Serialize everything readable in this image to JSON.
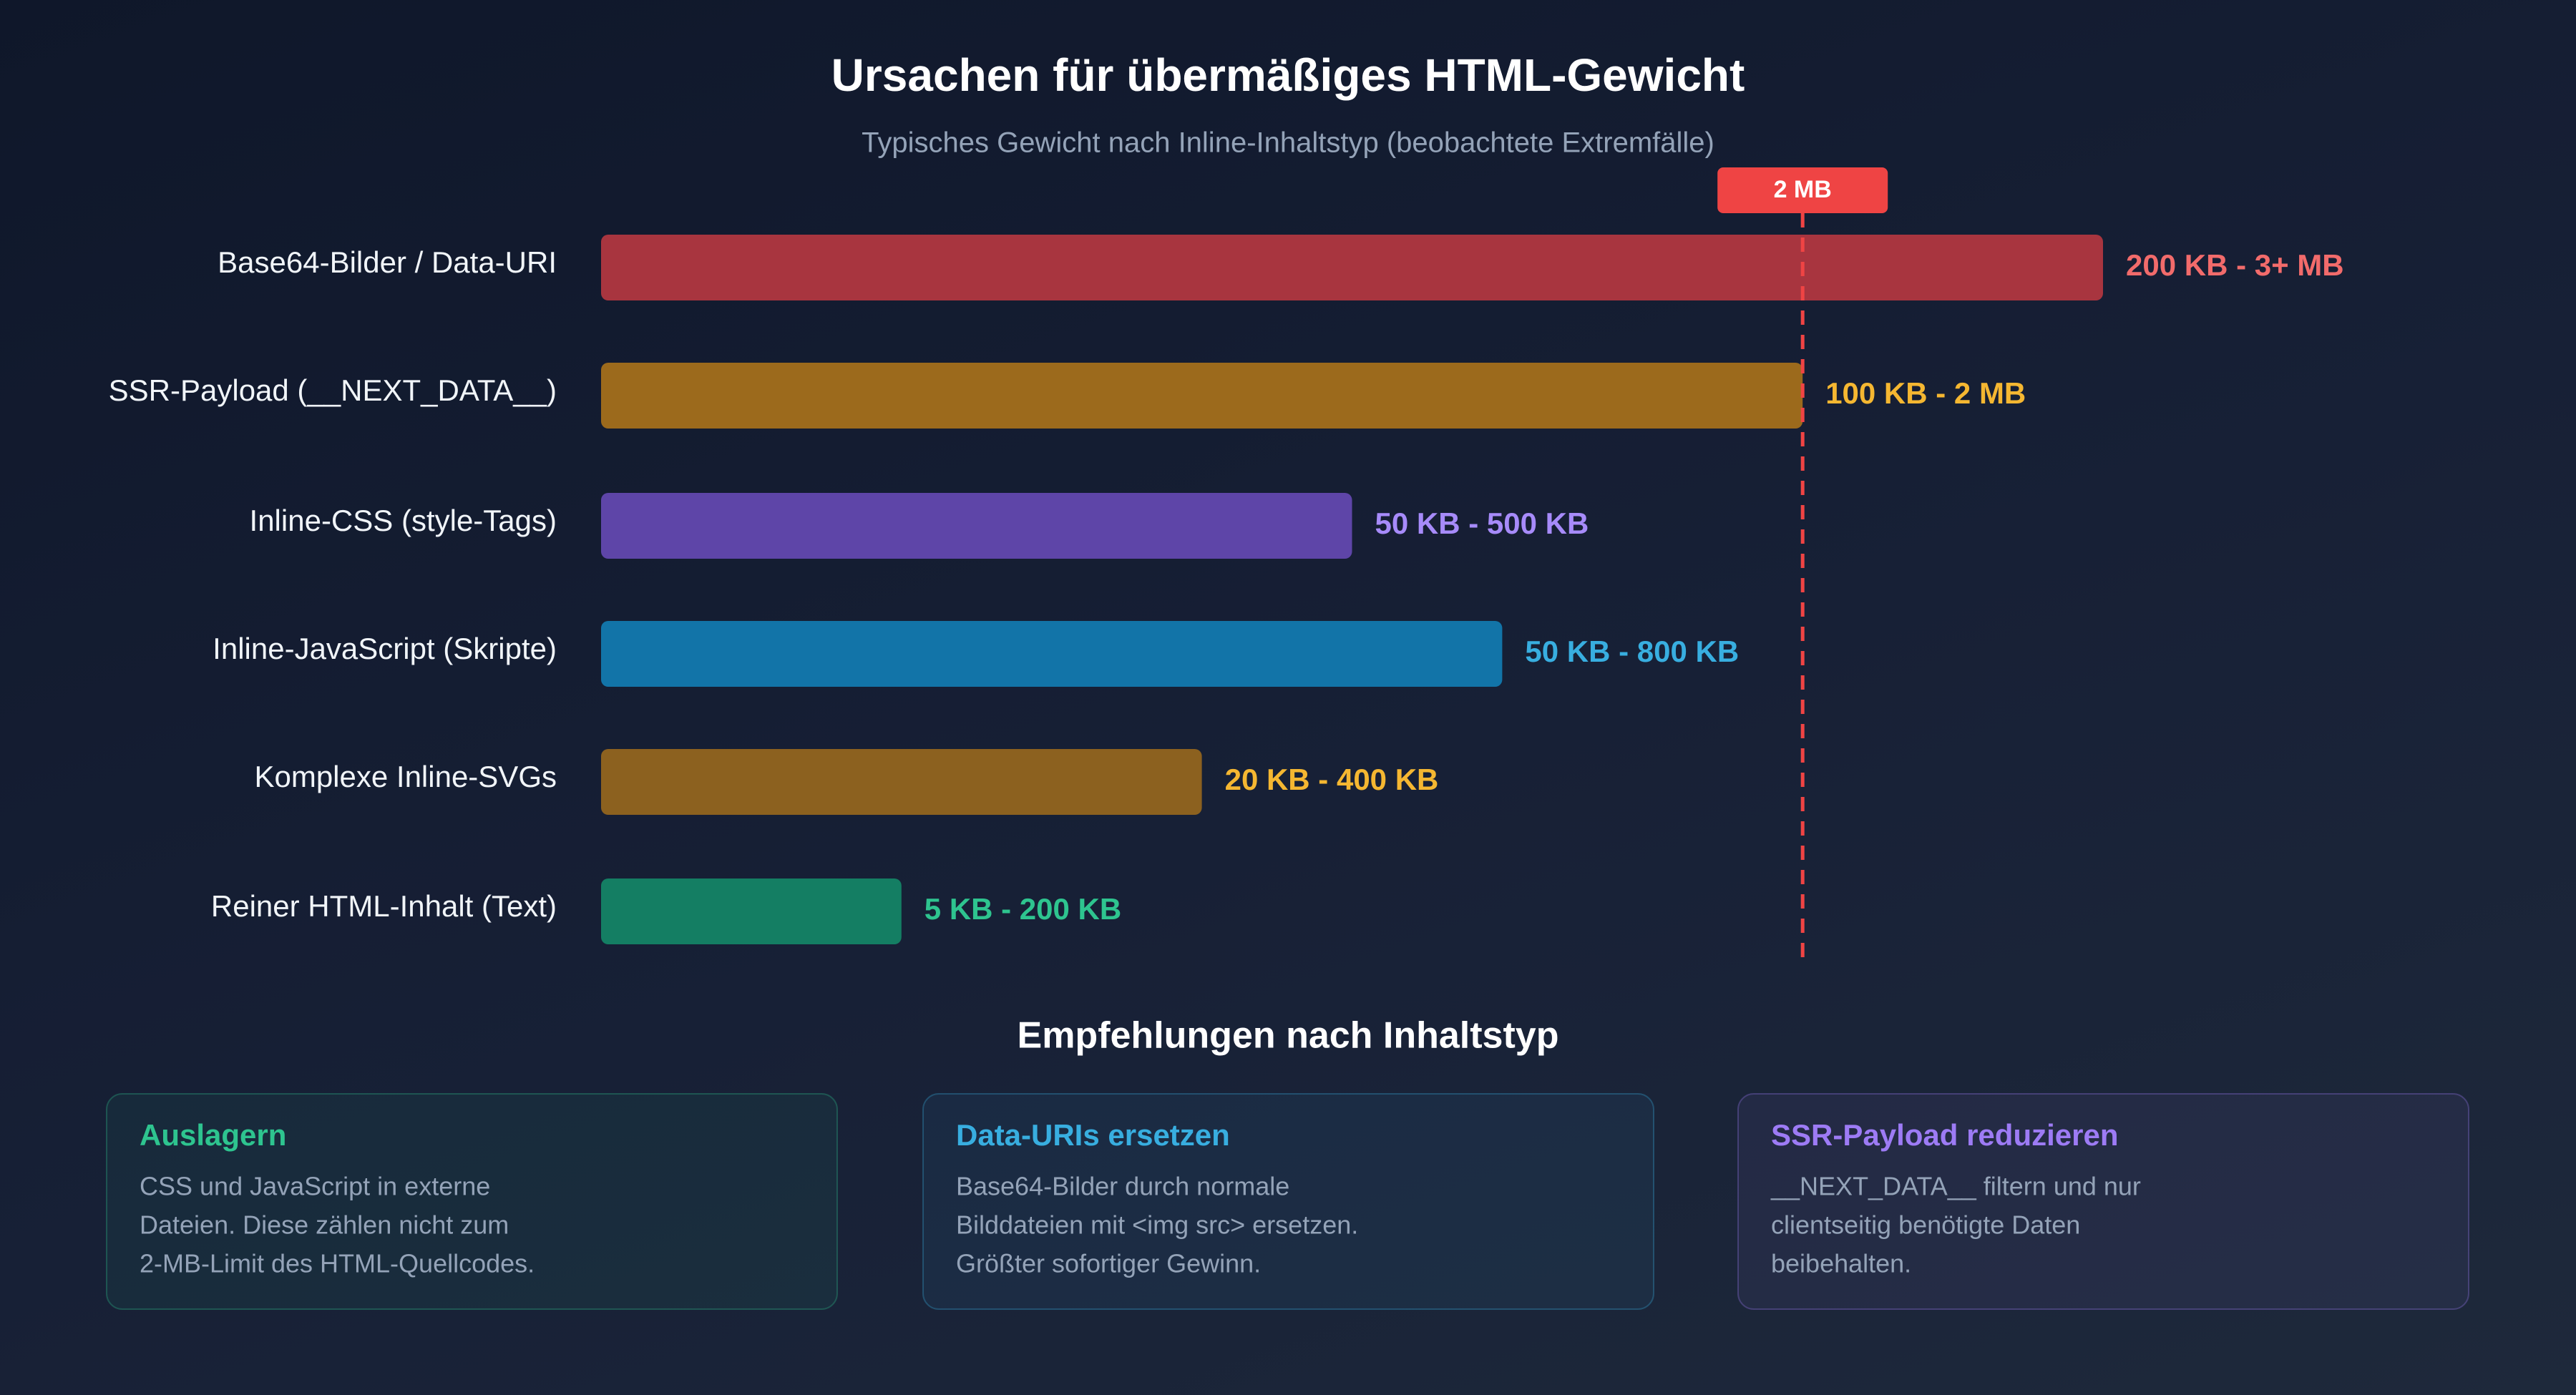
{
  "chart_data": {
    "type": "bar",
    "orientation": "horizontal",
    "title": "Ursachen für übermäßiges HTML-Gewicht",
    "subtitle": "Typisches Gewicht nach Inline-Inhaltstyp (beobachtete Extremfälle)",
    "categories": [
      "Base64-Bilder / Data-URI",
      "SSR-Payload (__NEXT_DATA__)",
      "Inline-CSS (style-Tags)",
      "Inline-JavaScript (Skripte)",
      "Komplexe Inline-SVGs",
      "Reiner HTML-Inhalt (Text)"
    ],
    "values": [
      2.5,
      2,
      1.25,
      1.5,
      1,
      0.5
    ],
    "range_labels": [
      "200 KB - 3+ MB",
      "100 KB - 2 MB",
      "50 KB - 500 KB",
      "50 KB - 800 KB",
      "20 KB - 400 KB",
      "5 KB - 200 KB"
    ],
    "colors": [
      "#a8353f",
      "#9c6a1c",
      "#5e45a8",
      "#1274a8",
      "#8c611f",
      "#147e63"
    ],
    "label_colors": [
      "#f26b6b",
      "#f5b731",
      "#a78bfa",
      "#38aee0",
      "#f5b731",
      "#2ec48f"
    ],
    "xlim": [
      0,
      2.5
    ],
    "reference_line": {
      "value": 2,
      "label": "2 MB",
      "color": "#ef4444"
    }
  },
  "recommendations": {
    "title": "Empfehlungen nach Inhaltstyp",
    "cards": [
      {
        "title": "Auslagern",
        "color": "#2ec48f",
        "lines": [
          "CSS und JavaScript in externe",
          "Dateien. Diese zählen nicht zum",
          "2-MB-Limit des HTML-Quellcodes."
        ]
      },
      {
        "title": "Data-URIs ersetzen",
        "color": "#38aee0",
        "lines": [
          "Base64-Bilder durch normale",
          "Bilddateien mit <img src> ersetzen.",
          "Größter sofortiger Gewinn."
        ]
      },
      {
        "title": "SSR-Payload reduzieren",
        "color": "#9d7bf5",
        "lines": [
          "__NEXT_DATA__ filtern und nur",
          "clientseitig benötigte Daten",
          "beibehalten."
        ]
      }
    ]
  }
}
